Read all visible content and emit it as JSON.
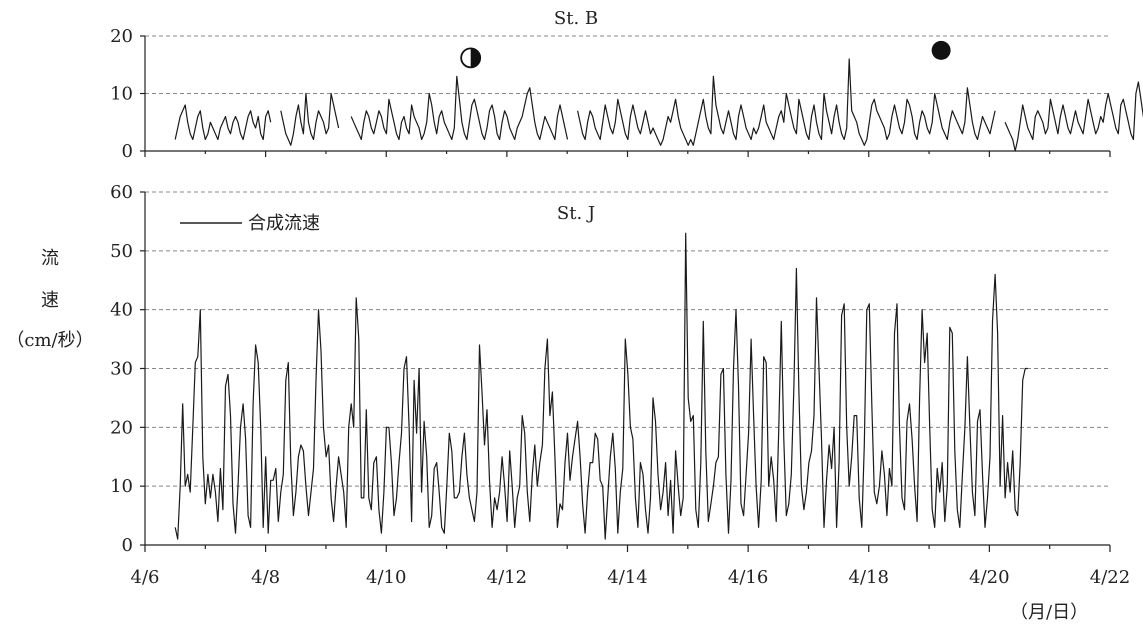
{
  "chart_data": [
    {
      "type": "line",
      "title": "St. B",
      "ylim": [
        0,
        20
      ],
      "yticks": [
        0,
        10,
        20
      ],
      "grid": "horizontal-dashed",
      "moon_icons": [
        {
          "name": "first-quarter-moon-icon",
          "x": 11.4,
          "y": 16.2
        },
        {
          "name": "full-moon-icon",
          "x": 19.2,
          "y": 17.5
        }
      ],
      "series": [
        {
          "x_start": 6.5,
          "x_step": 0.0417,
          "values": [
            2,
            4,
            6,
            7,
            8,
            5,
            3,
            2,
            4,
            6,
            7,
            4,
            2,
            3,
            5,
            4,
            3,
            2,
            4,
            5,
            6,
            4,
            3,
            5,
            6,
            5,
            3,
            2,
            4,
            6,
            7,
            5,
            4,
            6,
            3,
            2,
            6,
            7,
            5,
            null,
            null,
            null,
            7,
            5,
            3,
            2,
            1,
            3,
            6,
            8,
            5,
            3,
            10,
            5,
            3,
            2,
            5,
            7,
            6,
            5,
            3,
            4,
            10,
            8,
            6,
            4,
            null,
            null,
            null,
            null,
            6,
            5,
            4,
            3,
            2,
            5,
            7,
            6,
            4,
            3,
            5,
            7,
            6,
            4,
            3,
            9,
            7,
            5,
            3,
            2,
            5,
            6,
            4,
            3,
            8,
            6,
            5,
            4,
            2,
            3,
            5,
            10,
            8,
            5,
            3,
            6,
            7,
            5,
            4,
            3,
            2,
            4,
            13,
            9,
            5,
            3,
            2,
            5,
            8,
            9,
            7,
            5,
            3,
            2,
            4,
            7,
            8,
            6,
            3,
            2,
            5,
            7,
            6,
            4,
            3,
            2,
            4,
            5,
            6,
            8,
            10,
            11,
            8,
            5,
            3,
            2,
            4,
            6,
            5,
            4,
            3,
            2,
            6,
            8,
            6,
            4,
            2,
            null,
            null,
            null,
            7,
            5,
            3,
            2,
            5,
            7,
            6,
            4,
            3,
            2,
            5,
            8,
            6,
            4,
            3,
            5,
            9,
            7,
            5,
            3,
            2,
            6,
            8,
            6,
            4,
            3,
            5,
            7,
            5,
            3,
            4,
            3,
            2,
            1,
            2,
            4,
            6,
            5,
            7,
            9,
            6,
            4,
            3,
            2,
            1,
            2,
            1,
            3,
            5,
            7,
            9,
            6,
            4,
            3,
            13,
            8,
            6,
            4,
            3,
            5,
            7,
            5,
            3,
            2,
            6,
            8,
            6,
            4,
            3,
            2,
            4,
            3,
            4,
            6,
            8,
            5,
            4,
            3,
            2,
            4,
            6,
            7,
            5,
            10,
            8,
            6,
            4,
            3,
            9,
            7,
            5,
            3,
            2,
            6,
            8,
            5,
            3,
            2,
            10,
            7,
            5,
            3,
            6,
            8,
            5,
            3,
            2,
            4,
            16,
            7,
            6,
            5,
            3,
            2,
            1,
            2,
            5,
            8,
            9,
            7,
            6,
            5,
            4,
            2,
            3,
            6,
            8,
            6,
            4,
            3,
            5,
            9,
            8,
            6,
            3,
            2,
            5,
            7,
            6,
            4,
            3,
            5,
            10,
            8,
            6,
            4,
            3,
            2,
            5,
            7,
            6,
            5,
            4,
            3,
            5,
            11,
            8,
            5,
            3,
            2,
            4,
            6,
            5,
            4,
            3,
            5,
            7,
            null,
            null,
            null,
            5,
            4,
            3,
            2,
            0,
            2,
            5,
            8,
            6,
            4,
            3,
            2,
            6,
            7,
            6,
            5,
            3,
            4,
            9,
            7,
            5,
            3,
            6,
            8,
            6,
            4,
            3,
            5,
            7,
            5,
            4,
            3,
            6,
            9,
            7,
            5,
            3,
            4,
            6,
            5,
            8,
            10,
            8,
            6,
            4,
            3,
            8,
            9,
            7,
            5,
            3,
            2,
            10,
            12,
            9,
            6,
            4,
            3,
            2,
            8,
            13,
            6,
            4,
            2,
            5,
            7
          ]
        }
      ]
    },
    {
      "type": "line",
      "title": "St. J",
      "xlabel": "（月/日）",
      "ylabel": "流速（cm/秒）",
      "xlim": [
        6,
        22
      ],
      "xtick_labels": [
        "4/6",
        "4/8",
        "4/10",
        "4/12",
        "4/14",
        "4/16",
        "4/18",
        "4/20",
        "4/22"
      ],
      "xtick_values": [
        6,
        8,
        10,
        12,
        14,
        16,
        18,
        20,
        22
      ],
      "ylim": [
        0,
        60
      ],
      "yticks": [
        0,
        10,
        20,
        30,
        40,
        50,
        60
      ],
      "grid": "horizontal-dashed",
      "legend": {
        "position": "top-left",
        "label": "合成流速"
      },
      "series": [
        {
          "name": "合成流速",
          "x_start": 6.5,
          "x_step": 0.0417,
          "values": [
            3,
            1,
            10,
            24,
            10,
            12,
            9,
            20,
            31,
            32,
            40,
            15,
            7,
            12,
            8,
            12,
            9,
            4,
            13,
            6,
            27,
            29,
            22,
            7,
            2,
            10,
            20,
            24,
            18,
            5,
            3,
            24,
            34,
            31,
            20,
            3,
            15,
            2,
            11,
            11,
            13,
            4,
            9,
            12,
            28,
            31,
            14,
            5,
            9,
            15,
            17,
            16,
            10,
            5,
            9,
            13,
            28,
            40,
            33,
            20,
            15,
            17,
            8,
            4,
            10,
            15,
            12,
            9,
            3,
            20,
            24,
            20,
            42,
            35,
            8,
            8,
            23,
            8,
            6,
            14,
            15,
            6,
            2,
            9,
            20,
            20,
            14,
            5,
            8,
            14,
            19,
            30,
            32,
            20,
            4,
            28,
            19,
            30,
            9,
            21,
            15,
            3,
            5,
            13,
            14,
            9,
            3,
            2,
            10,
            19,
            16,
            8,
            8,
            9,
            15,
            19,
            12,
            8,
            6,
            4,
            9,
            34,
            26,
            17,
            23,
            11,
            3,
            8,
            6,
            9,
            15,
            10,
            4,
            16,
            10,
            3,
            8,
            10,
            22,
            19,
            9,
            4,
            12,
            17,
            10,
            14,
            17,
            30,
            35,
            22,
            26,
            15,
            3,
            7,
            6,
            14,
            19,
            11,
            15,
            18,
            21,
            15,
            7,
            2,
            9,
            14,
            14,
            19,
            18,
            11,
            10,
            1,
            8,
            15,
            19,
            13,
            2,
            9,
            13,
            35,
            29,
            20,
            18,
            8,
            3,
            14,
            12,
            6,
            2,
            8,
            25,
            21,
            12,
            6,
            9,
            14,
            5,
            11,
            2,
            16,
            10,
            5,
            8,
            53,
            25,
            21,
            22,
            6,
            3,
            14,
            38,
            16,
            4,
            7,
            10,
            14,
            15,
            29,
            30,
            12,
            2,
            11,
            30,
            40,
            27,
            7,
            5,
            12,
            19,
            35,
            22,
            10,
            3,
            11,
            32,
            31,
            10,
            15,
            11,
            4,
            20,
            38,
            18,
            5,
            7,
            12,
            27,
            47,
            26,
            10,
            6,
            9,
            14,
            16,
            22,
            42,
            30,
            18,
            3,
            11,
            17,
            13,
            20,
            3,
            14,
            39,
            41,
            20,
            10,
            15,
            22,
            22,
            8,
            3,
            17,
            40,
            41,
            24,
            9,
            7,
            10,
            16,
            12,
            5,
            13,
            10,
            36,
            41,
            20,
            8,
            6,
            21,
            24,
            18,
            10,
            4,
            25,
            40,
            31,
            36,
            20,
            6,
            3,
            13,
            9,
            14,
            4,
            10,
            37,
            36,
            16,
            6,
            3,
            12,
            20,
            32,
            20,
            9,
            5,
            21,
            23,
            12,
            3,
            8,
            15,
            38,
            46,
            36,
            10,
            22,
            8,
            14,
            9,
            16,
            6,
            5,
            14,
            28,
            30,
            30
          ]
        }
      ]
    }
  ],
  "labels": {
    "station_b": "St. B",
    "station_j": "St. J",
    "legend_label": "合成流速",
    "ylabel_char1": "流",
    "ylabel_char2": "速",
    "ylabel_unit": "（cm/秒）",
    "xlabel_unit": "（月/日）"
  }
}
